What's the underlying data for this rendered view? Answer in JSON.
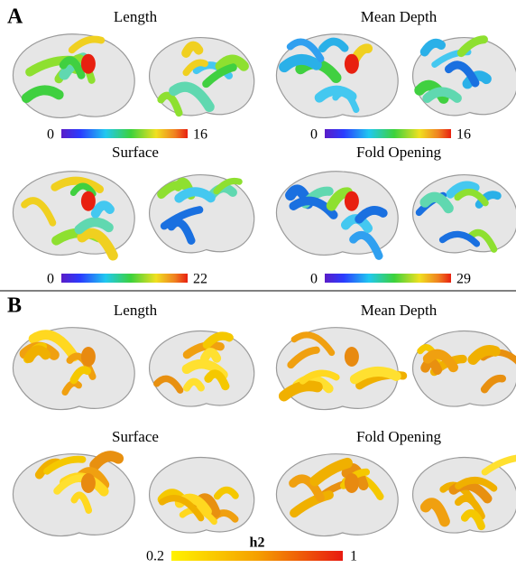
{
  "panels": [
    {
      "label": "A",
      "maps": [
        {
          "title": "Length",
          "colorbar": {
            "min": 0,
            "max": 16
          }
        },
        {
          "title": "Mean Depth",
          "colorbar": {
            "min": 0,
            "max": 16
          }
        },
        {
          "title": "Surface",
          "colorbar": {
            "min": 0,
            "max": 22
          }
        },
        {
          "title": "Fold Opening",
          "colorbar": {
            "min": 0,
            "max": 29
          }
        }
      ]
    },
    {
      "label": "B",
      "maps": [
        {
          "title": "Length"
        },
        {
          "title": "Mean Depth"
        },
        {
          "title": "Surface"
        },
        {
          "title": "Fold Opening"
        }
      ],
      "colorbar": {
        "min": 0.2,
        "max": 1,
        "label": "h2"
      }
    }
  ]
}
